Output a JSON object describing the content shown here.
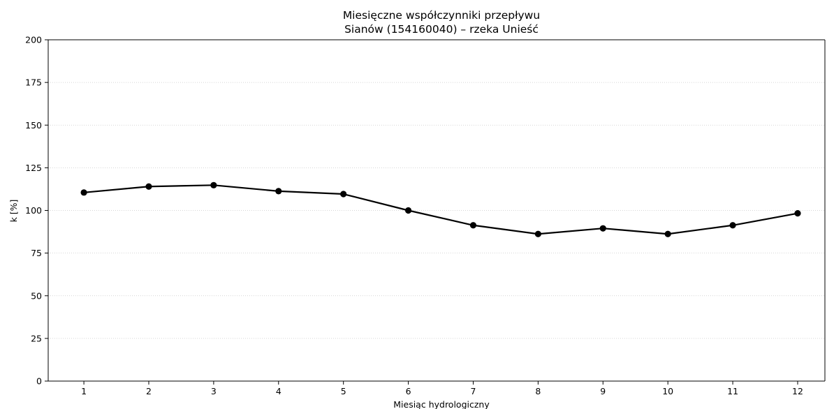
{
  "chart_data": {
    "type": "line",
    "title": "Miesięczne współczynniki przepływu",
    "subtitle": "Sianów (154160040) – rzeka Unieść",
    "xlabel": "Miesiąc hydrologiczny",
    "ylabel": "k [%]",
    "x": [
      1,
      2,
      3,
      4,
      5,
      6,
      7,
      8,
      9,
      10,
      11,
      12
    ],
    "series": [
      {
        "values": [
          110.5,
          114.0,
          114.8,
          111.3,
          109.6,
          100.0,
          91.3,
          86.2,
          89.5,
          86.2,
          91.3,
          98.3
        ],
        "color": "#000000"
      }
    ],
    "xlim": [
      0.45,
      12.42
    ],
    "ylim": [
      0,
      200
    ],
    "xticks": [
      "1",
      "2",
      "3",
      "4",
      "5",
      "6",
      "7",
      "8",
      "9",
      "10",
      "11",
      "12"
    ],
    "yticks": [
      "0",
      "25",
      "50",
      "75",
      "100",
      "125",
      "150",
      "175",
      "200"
    ],
    "grid": "horizontal-dotted",
    "legend": "none"
  }
}
